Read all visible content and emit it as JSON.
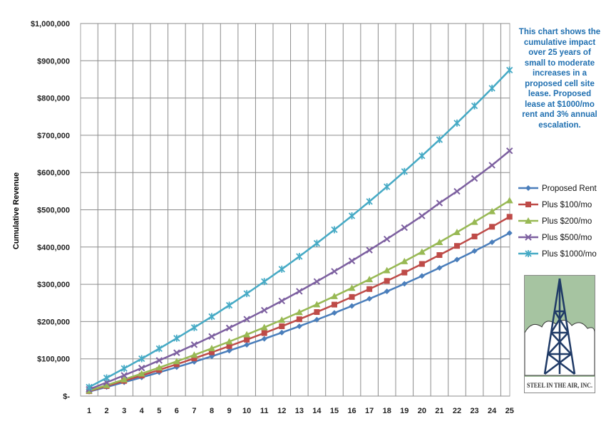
{
  "chart_data": {
    "type": "line",
    "title": "",
    "xlabel": "",
    "ylabel": "Cumulative Revenue",
    "x": [
      1,
      2,
      3,
      4,
      5,
      6,
      7,
      8,
      9,
      10,
      11,
      12,
      13,
      14,
      15,
      16,
      17,
      18,
      19,
      20,
      21,
      22,
      23,
      24,
      25
    ],
    "xtick_labels": [
      "1",
      "2",
      "3",
      "4",
      "5",
      "6",
      "7",
      "8",
      "9",
      "10",
      "11",
      "12",
      "13",
      "14",
      "15",
      "16",
      "17",
      "18",
      "19",
      "20",
      "21",
      "22",
      "23",
      "24",
      "25"
    ],
    "ylim": [
      0,
      1000000
    ],
    "ytick_values": [
      0,
      100000,
      200000,
      300000,
      400000,
      500000,
      600000,
      700000,
      800000,
      900000,
      1000000
    ],
    "ytick_labels": [
      "$-",
      "$100,000",
      "$200,000",
      "$300,000",
      "$400,000",
      "$500,000",
      "$600,000",
      "$700,000",
      "$800,000",
      "$900,000",
      "$1,000,000"
    ],
    "grid": "on",
    "legend_position": "right",
    "series": [
      {
        "name": "Proposed Rent",
        "color": "#4a7ebb",
        "marker": "diamond",
        "values": [
          12000,
          24360,
          37091,
          50204,
          63710,
          77621,
          91950,
          106708,
          121909,
          137567,
          153694,
          170304,
          187414,
          205036,
          223187,
          241883,
          261139,
          280973,
          301402,
          322444,
          344117,
          366440,
          389433,
          413116,
          437509
        ]
      },
      {
        "name": "Plus $100/mo",
        "color": "#be4b48",
        "marker": "square",
        "values": [
          13200,
          26796,
          40800,
          55224,
          70081,
          85383,
          101145,
          117379,
          134101,
          151324,
          169064,
          187336,
          206157,
          225542,
          245509,
          266074,
          287256,
          309074,
          331546,
          354693,
          378533,
          403089,
          428382,
          454433,
          481266
        ]
      },
      {
        "name": "Plus $200/mo",
        "color": "#98b954",
        "marker": "triangle",
        "values": [
          14400,
          29232,
          44509,
          60244,
          76451,
          93145,
          110339,
          128050,
          146292,
          165080,
          184433,
          204367,
          224899,
          246047,
          267830,
          290267,
          313377,
          337180,
          361697,
          386948,
          412957,
          439745,
          467337,
          495756,
          525028
        ]
      },
      {
        "name": "Plus $500/mo",
        "color": "#7d60a0",
        "marker": "x",
        "values": [
          18000,
          36540,
          55636,
          75305,
          95565,
          116432,
          137925,
          160062,
          182864,
          206350,
          230540,
          255457,
          281120,
          307554,
          334780,
          362825,
          391709,
          421460,
          452104,
          483666,
          518175,
          549661,
          584150,
          619674,
          658264
        ]
      },
      {
        "name": "Plus $1000/mo",
        "color": "#46aac5",
        "marker": "star",
        "values": [
          24000,
          48720,
          74182,
          100407,
          127420,
          155243,
          183901,
          213416,
          243819,
          275134,
          307388,
          340609,
          374828,
          410073,
          446375,
          483766,
          522278,
          561946,
          602804,
          644887,
          688233,
          732880,
          778866,
          826232,
          875019
        ]
      }
    ]
  },
  "note": "This chart shows the cumulative impact over 25 years of small to moderate increases in a proposed cell site lease.  Proposed lease at $1000/mo rent and 3% annual escalation.",
  "logo_text": "STEEL IN THE AIR, INC."
}
